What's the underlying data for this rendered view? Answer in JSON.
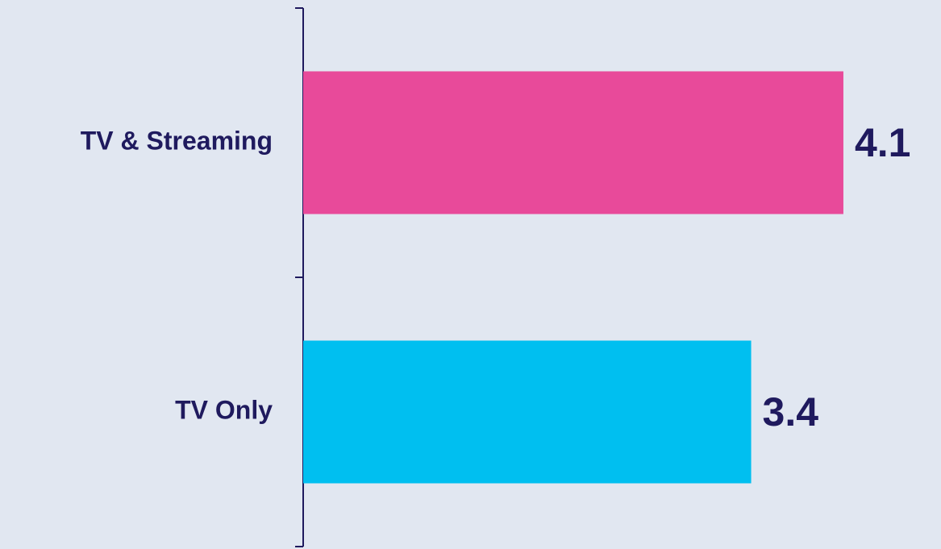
{
  "chart_data": {
    "type": "bar",
    "orientation": "horizontal",
    "categories": [
      "TV & Streaming",
      "TV Only"
    ],
    "values": [
      4.1,
      3.4
    ],
    "colors": [
      "#e84a9a",
      "#00bff0"
    ],
    "xlim": [
      0,
      5
    ]
  }
}
